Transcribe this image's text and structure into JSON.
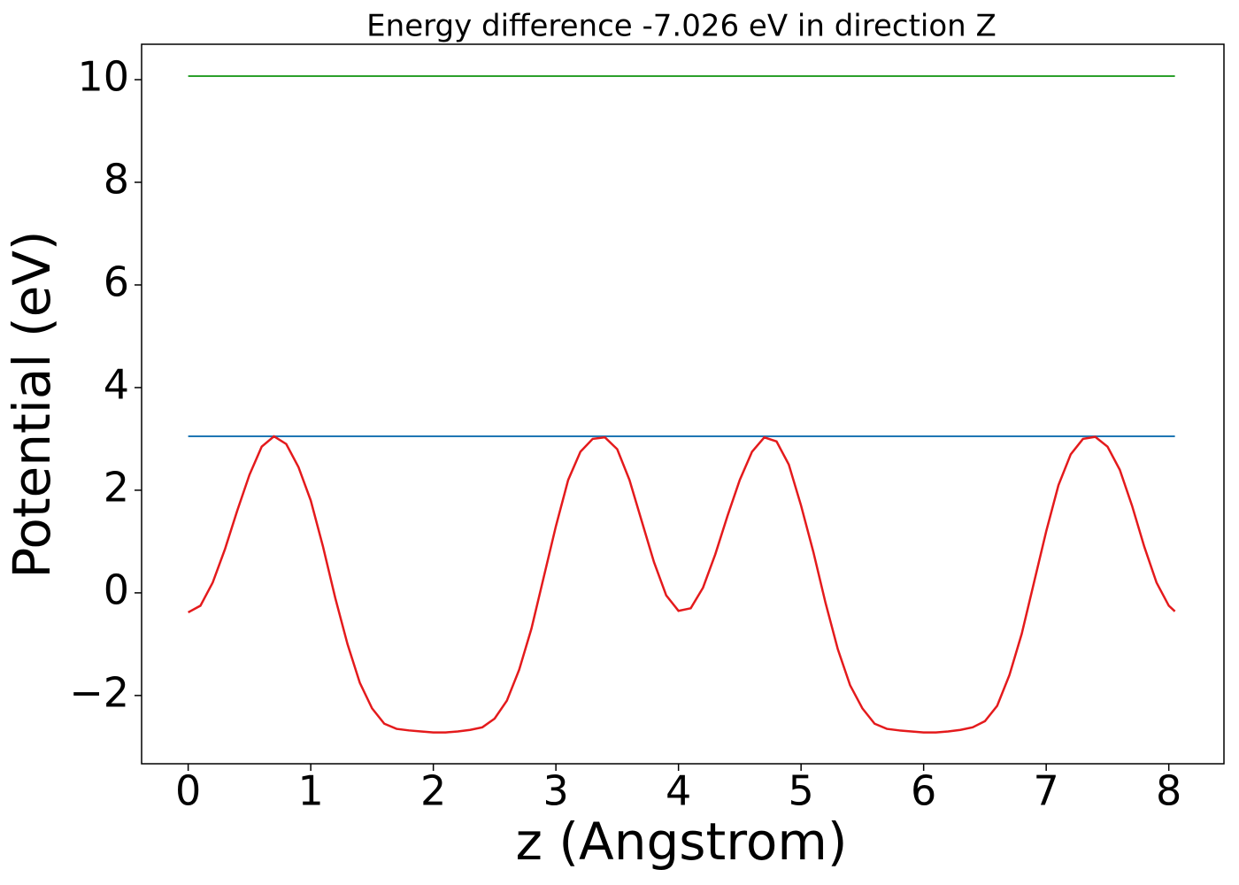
{
  "chart_data": {
    "type": "line",
    "title": "Energy difference -7.026 eV in direction Z",
    "xlabel": "z (Angstrom)",
    "ylabel": "Potential (eV)",
    "xlim": [
      -0.38,
      8.45
    ],
    "ylim": [
      -3.33,
      10.69
    ],
    "xticks": [
      0,
      1,
      2,
      3,
      4,
      5,
      6,
      7,
      8
    ],
    "yticks": [
      {
        "value": -2,
        "label": "−2"
      },
      0,
      2,
      4,
      6,
      8,
      10
    ],
    "series": [
      {
        "color": "#1f77b4",
        "x": [
          0,
          8.05
        ],
        "values": [
          3.05,
          3.05
        ]
      },
      {
        "color": "#2ca02c",
        "x": [
          0,
          8.05
        ],
        "values": [
          10.07,
          10.07
        ]
      },
      {
        "color": "#e41a1c",
        "x": [
          0,
          0.1,
          0.2,
          0.3,
          0.4,
          0.5,
          0.6,
          0.7,
          0.8,
          0.9,
          1.0,
          1.1,
          1.2,
          1.3,
          1.4,
          1.5,
          1.6,
          1.7,
          1.8,
          1.9,
          2.0,
          2.1,
          2.2,
          2.3,
          2.4,
          2.5,
          2.6,
          2.7,
          2.8,
          2.9,
          3.0,
          3.1,
          3.2,
          3.3,
          3.4,
          3.5,
          3.6,
          3.7,
          3.8,
          3.9,
          4.0,
          4.1,
          4.2,
          4.3,
          4.4,
          4.5,
          4.6,
          4.7,
          4.8,
          4.9,
          5.0,
          5.1,
          5.2,
          5.3,
          5.4,
          5.5,
          5.6,
          5.7,
          5.8,
          5.9,
          6.0,
          6.1,
          6.2,
          6.3,
          6.4,
          6.5,
          6.6,
          6.7,
          6.8,
          6.9,
          7.0,
          7.1,
          7.2,
          7.3,
          7.4,
          7.5,
          7.6,
          7.7,
          7.8,
          7.9,
          8.0,
          8.05
        ],
        "values": [
          -0.38,
          -0.25,
          0.2,
          0.85,
          1.6,
          2.3,
          2.85,
          3.05,
          2.9,
          2.45,
          1.8,
          0.9,
          -0.1,
          -1.0,
          -1.75,
          -2.25,
          -2.55,
          -2.65,
          -2.68,
          -2.7,
          -2.72,
          -2.72,
          -2.7,
          -2.67,
          -2.62,
          -2.45,
          -2.1,
          -1.5,
          -0.7,
          0.3,
          1.3,
          2.2,
          2.75,
          3.0,
          3.03,
          2.8,
          2.2,
          1.4,
          0.6,
          -0.05,
          -0.35,
          -0.3,
          0.1,
          0.75,
          1.5,
          2.2,
          2.75,
          3.03,
          2.95,
          2.5,
          1.7,
          0.8,
          -0.2,
          -1.1,
          -1.8,
          -2.25,
          -2.55,
          -2.65,
          -2.68,
          -2.7,
          -2.72,
          -2.72,
          -2.7,
          -2.67,
          -2.62,
          -2.5,
          -2.2,
          -1.6,
          -0.8,
          0.2,
          1.2,
          2.1,
          2.7,
          3.0,
          3.04,
          2.85,
          2.4,
          1.7,
          0.9,
          0.2,
          -0.25,
          -0.36
        ]
      }
    ]
  }
}
